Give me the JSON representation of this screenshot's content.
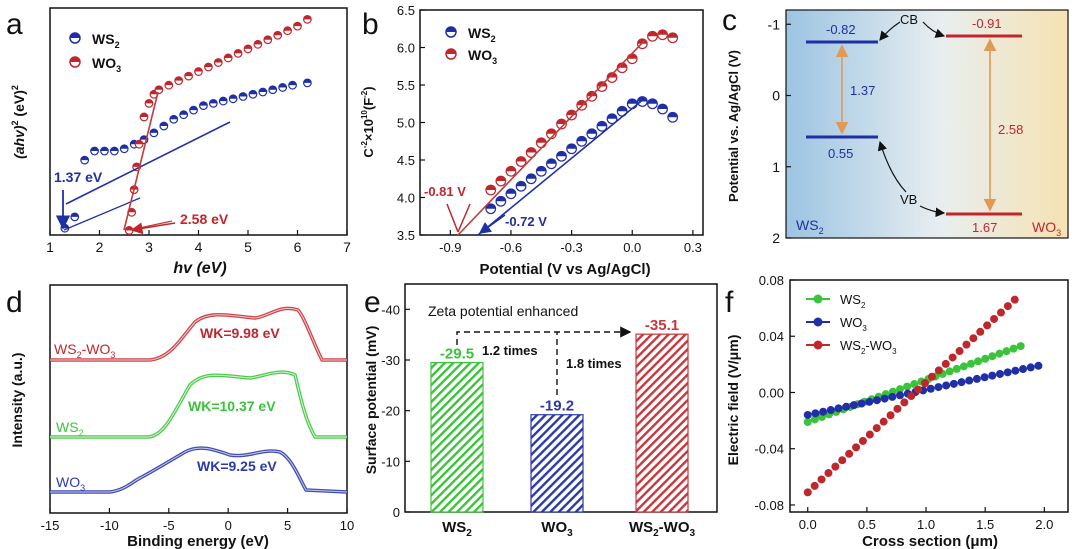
{
  "colors": {
    "ws2": "#1f2fa5",
    "wo3": "#c0272d",
    "ws2_green": "#3bc43b",
    "fit_red": "#c23a3a",
    "arrow_orange": "#e09a55",
    "axis": "#111111"
  },
  "panels": {
    "a": {
      "letter": "a",
      "ylabel_main": "(ahv)",
      "ylabel_sup1": "2",
      "ylabel_mid": " (eV)",
      "ylabel_sup2": "2",
      "xlabel": "hv (eV)",
      "xticks": [
        "1",
        "2",
        "3",
        "4",
        "5",
        "6",
        "7"
      ],
      "legend_ws2": "WS",
      "legend_wo3": "WO",
      "sub2": "2",
      "sub3": "3",
      "annotation_ws2": "1.37 eV",
      "annotation_wo3": "2.58 eV"
    },
    "b": {
      "letter": "b",
      "ylabel": "C",
      "ylabel_sup": "-2",
      "ylabel_mid": "×10",
      "ylabel_sup2": "10",
      "ylabel_end": "(F",
      "ylabel_sup3": "-2",
      "ylabel_close": ")",
      "xlabel": "Potential (V vs Ag/AgCl)",
      "xticks": [
        "-0.9",
        "-0.6",
        "-0.3",
        "0.0",
        "0.3"
      ],
      "yticks": [
        "3.5",
        "4.0",
        "4.5",
        "5.0",
        "5.5",
        "6.0",
        "6.5"
      ],
      "legend_ws2": "WS",
      "legend_wo3": "WO",
      "sub2": "2",
      "sub3": "3",
      "annotation_wo3": "-0.81 V",
      "annotation_ws2": "-0.72 V"
    },
    "c": {
      "letter": "c",
      "ylabel": "Potential vs. Ag/AgCl (V)",
      "yticks": [
        "-1",
        "0",
        "1",
        "2"
      ],
      "ws2_cb": "-0.82",
      "wo3_cb": "-0.91",
      "ws2_gap": "1.37",
      "wo3_gap": "2.58",
      "ws2_vb": "0.55",
      "wo3_vb": "1.67",
      "cb_label": "CB",
      "vb_label": "VB",
      "ws2_label": "WS",
      "wo3_label": "WO",
      "sub2": "2",
      "sub3": "3"
    },
    "d": {
      "letter": "d",
      "ylabel": "Intensity (a.u.)",
      "xlabel": "Binding energy (eV)",
      "xticks": [
        "-15",
        "-10",
        "-5",
        "0",
        "5",
        "10"
      ],
      "label_combo_a": "WS",
      "label_combo_b": "-WO",
      "label_ws2": "WS",
      "label_wo3": "WO",
      "sub2": "2",
      "sub3": "3",
      "wk_combo": "WK=9.98 eV",
      "wk_ws2": "WK=10.37 eV",
      "wk_wo3": "WK=9.25 eV"
    },
    "e": {
      "letter": "e",
      "ylabel": "Surface potential (mV)",
      "title": "Zeta potential enhanced",
      "yticks": [
        "-40",
        "-30",
        "-20",
        "-10",
        "0"
      ],
      "cat_ws2": "WS",
      "cat_wo3": "WO",
      "cat_combo_a": "WS",
      "cat_combo_b": "-WO",
      "sub2": "2",
      "sub3": "3",
      "val_ws2": "-29.5",
      "val_wo3": "-19.2",
      "val_combo": "-35.1",
      "ratio1": "1.2 times",
      "ratio2": "1.8 times"
    },
    "f": {
      "letter": "f",
      "ylabel": "Electric field (V/μm)",
      "xlabel": "Cross section (μm)",
      "xticks": [
        "0.0",
        "0.5",
        "1.0",
        "1.5",
        "2.0"
      ],
      "yticks": [
        "-0.08",
        "-0.04",
        "0.00",
        "0.04",
        "0.08"
      ],
      "legend_ws2": "WS",
      "legend_wo3": "WO",
      "legend_combo_a": "WS",
      "legend_combo_b": "-WO",
      "sub2": "2",
      "sub3": "3"
    }
  },
  "chart_data": [
    {
      "panel": "a",
      "type": "scatter",
      "xlabel": "hv (eV)",
      "ylabel": "(ahv)^2 (eV)^2",
      "xlim": [
        1,
        7
      ],
      "series": [
        {
          "name": "WS2",
          "x": [
            1.3,
            1.5,
            1.7,
            1.9,
            2.1,
            2.3,
            2.5,
            2.7,
            2.9,
            3.1,
            3.3,
            3.5,
            3.7,
            3.9,
            4.1,
            4.3,
            4.5,
            4.7,
            4.9,
            5.1,
            5.3,
            5.5,
            5.7,
            5.9,
            6.2
          ],
          "y": [
            0.03,
            0.08,
            0.33,
            0.37,
            0.37,
            0.37,
            0.38,
            0.4,
            0.42,
            0.45,
            0.48,
            0.51,
            0.53,
            0.55,
            0.57,
            0.58,
            0.59,
            0.6,
            0.61,
            0.62,
            0.63,
            0.64,
            0.65,
            0.66,
            0.67
          ]
        },
        {
          "name": "WO3",
          "x": [
            2.6,
            2.65,
            2.7,
            2.75,
            2.8,
            2.9,
            3.0,
            3.1,
            3.2,
            3.4,
            3.6,
            3.8,
            4.0,
            4.2,
            4.4,
            4.6,
            4.8,
            5.0,
            5.2,
            5.4,
            5.6,
            5.8,
            6.0,
            6.2
          ],
          "y": [
            0.02,
            0.1,
            0.2,
            0.3,
            0.4,
            0.52,
            0.58,
            0.62,
            0.64,
            0.66,
            0.68,
            0.7,
            0.72,
            0.74,
            0.76,
            0.78,
            0.8,
            0.82,
            0.84,
            0.86,
            0.88,
            0.9,
            0.92,
            0.95
          ]
        }
      ],
      "annotations": [
        "1.37 eV",
        "2.58 eV"
      ]
    },
    {
      "panel": "b",
      "type": "scatter",
      "xlabel": "Potential (V vs Ag/AgCl)",
      "ylabel": "C^-2×10^10(F^-2)",
      "xlim": [
        -1.05,
        0.35
      ],
      "ylim": [
        3.5,
        6.5
      ],
      "series": [
        {
          "name": "WS2",
          "x": [
            -0.7,
            -0.65,
            -0.6,
            -0.55,
            -0.5,
            -0.45,
            -0.4,
            -0.35,
            -0.3,
            -0.25,
            -0.2,
            -0.15,
            -0.1,
            -0.05,
            0.0,
            0.05,
            0.1,
            0.15,
            0.2
          ],
          "y": [
            3.85,
            3.95,
            4.05,
            4.15,
            4.25,
            4.35,
            4.45,
            4.55,
            4.65,
            4.75,
            4.85,
            4.95,
            5.05,
            5.15,
            5.25,
            5.28,
            5.25,
            5.18,
            5.07
          ]
        },
        {
          "name": "WO3",
          "x": [
            -0.7,
            -0.65,
            -0.6,
            -0.55,
            -0.5,
            -0.45,
            -0.4,
            -0.35,
            -0.3,
            -0.25,
            -0.2,
            -0.15,
            -0.1,
            -0.05,
            0.0,
            0.05,
            0.1,
            0.15,
            0.2
          ],
          "y": [
            4.1,
            4.22,
            4.35,
            4.48,
            4.6,
            4.73,
            4.85,
            4.98,
            5.1,
            5.23,
            5.35,
            5.48,
            5.6,
            5.73,
            5.85,
            6.05,
            6.15,
            6.17,
            6.13
          ]
        }
      ],
      "annotations": [
        "-0.81 V",
        "-0.72 V"
      ]
    },
    {
      "panel": "c",
      "type": "diagram",
      "ylabel": "Potential vs. Ag/AgCl (V)",
      "ylim": [
        -1.2,
        2.0
      ],
      "levels": [
        {
          "material": "WS2",
          "CB": -0.82,
          "VB": 0.55,
          "gap": 1.37
        },
        {
          "material": "WO3",
          "CB": -0.91,
          "VB": 1.67,
          "gap": 2.58
        }
      ]
    },
    {
      "panel": "d",
      "type": "line",
      "xlabel": "Binding energy (eV)",
      "ylabel": "Intensity (a.u.)",
      "xlim": [
        -15,
        10
      ],
      "series": [
        {
          "name": "WS2-WO3",
          "work_function": "WK=9.98 eV"
        },
        {
          "name": "WS2",
          "work_function": "WK=10.37 eV"
        },
        {
          "name": "WO3",
          "work_function": "WK=9.25 eV"
        }
      ]
    },
    {
      "panel": "e",
      "type": "bar",
      "title": "Zeta potential enhanced",
      "ylabel": "Surface potential (mV)",
      "categories": [
        "WS2",
        "WO3",
        "WS2-WO3"
      ],
      "values": [
        -29.5,
        -19.2,
        -35.1
      ],
      "ylim": [
        0,
        -45
      ],
      "annotations": [
        "1.2 times",
        "1.8 times"
      ]
    },
    {
      "panel": "f",
      "type": "scatter",
      "xlabel": "Cross section (μm)",
      "ylabel": "Electric field (V/μm)",
      "xlim": [
        -0.15,
        2.2
      ],
      "ylim": [
        -0.085,
        0.08
      ],
      "series": [
        {
          "name": "WS2",
          "x_start": 0.0,
          "x_end": 1.8,
          "y_start": -0.021,
          "y_end": 0.033
        },
        {
          "name": "WO3",
          "x_start": 0.0,
          "x_end": 1.95,
          "y_start": -0.016,
          "y_end": 0.019
        },
        {
          "name": "WS2-WO3",
          "x_start": 0.0,
          "x_end": 1.75,
          "y_start": -0.071,
          "y_end": 0.066
        }
      ]
    }
  ]
}
